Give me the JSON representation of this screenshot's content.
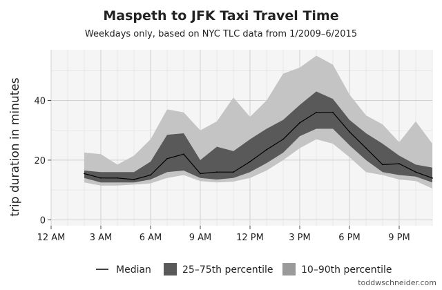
{
  "chart_data": {
    "type": "line",
    "title": "Maspeth to JFK Taxi Travel Time",
    "subtitle": "Weekdays only, based on NYC TLC data from 1/2009–6/2015",
    "ylabel": "trip duration in minutes",
    "xlabel": "",
    "xlim": [
      0,
      23
    ],
    "ylim": [
      -2,
      57
    ],
    "x_ticks": [
      {
        "x": 0,
        "label": "12 AM"
      },
      {
        "x": 3,
        "label": "3 AM"
      },
      {
        "x": 6,
        "label": "6 AM"
      },
      {
        "x": 9,
        "label": "9 AM"
      },
      {
        "x": 12,
        "label": "12 PM"
      },
      {
        "x": 15,
        "label": "3 PM"
      },
      {
        "x": 18,
        "label": "6 PM"
      },
      {
        "x": 21,
        "label": "9 PM"
      }
    ],
    "y_ticks": [
      0,
      20,
      40
    ],
    "grid": true,
    "legend_position": "bottom",
    "series": [
      {
        "name": "Median",
        "kind": "line",
        "color": "#000000",
        "x": [
          2,
          3,
          4,
          5,
          6,
          7,
          8,
          9,
          10,
          11,
          12,
          13,
          14,
          15,
          16,
          17,
          18,
          19,
          20,
          21,
          22,
          23
        ],
        "values": [
          15.5,
          14,
          14,
          13.5,
          15,
          20.5,
          22,
          15.5,
          16,
          16,
          19.5,
          23.5,
          27,
          32.5,
          36,
          36,
          29.5,
          24,
          18.5,
          18.8,
          16,
          14
        ]
      },
      {
        "name": "25–75th percentile",
        "kind": "band",
        "color": "#595959",
        "x": [
          2,
          3,
          4,
          5,
          6,
          7,
          8,
          9,
          10,
          11,
          12,
          13,
          14,
          15,
          16,
          17,
          18,
          19,
          20,
          21,
          22,
          23
        ],
        "low": [
          14,
          12.5,
          12.5,
          12.5,
          13.5,
          16,
          16.5,
          14,
          13.5,
          14,
          16,
          19,
          22.5,
          28,
          30.5,
          30.5,
          25,
          20,
          16,
          15,
          14.5,
          12.5
        ],
        "high": [
          16.5,
          16,
          16,
          16,
          19.5,
          28.5,
          29,
          20,
          24.5,
          23,
          27,
          30.5,
          33.5,
          38.5,
          43,
          40.5,
          33.5,
          29,
          25.5,
          21.5,
          18.5,
          17.5
        ]
      },
      {
        "name": "10–90th percentile",
        "kind": "band",
        "color": "#c4c4c4",
        "x": [
          2,
          3,
          4,
          5,
          6,
          7,
          8,
          9,
          10,
          11,
          12,
          13,
          14,
          15,
          16,
          17,
          18,
          19,
          20,
          21,
          22,
          23
        ],
        "low": [
          12.5,
          11.5,
          11.5,
          11.8,
          12.2,
          14,
          15,
          13,
          12.5,
          12.8,
          14,
          16.5,
          20,
          24,
          27,
          25.5,
          21,
          16,
          15,
          13.5,
          13,
          10.5
        ],
        "high": [
          22.5,
          22,
          18.5,
          21.5,
          27,
          37,
          36,
          30,
          33,
          41,
          34.5,
          40,
          49,
          51,
          55,
          52,
          42,
          35,
          32,
          26,
          33,
          25.5
        ]
      }
    ]
  },
  "credit": "toddwschneider.com"
}
